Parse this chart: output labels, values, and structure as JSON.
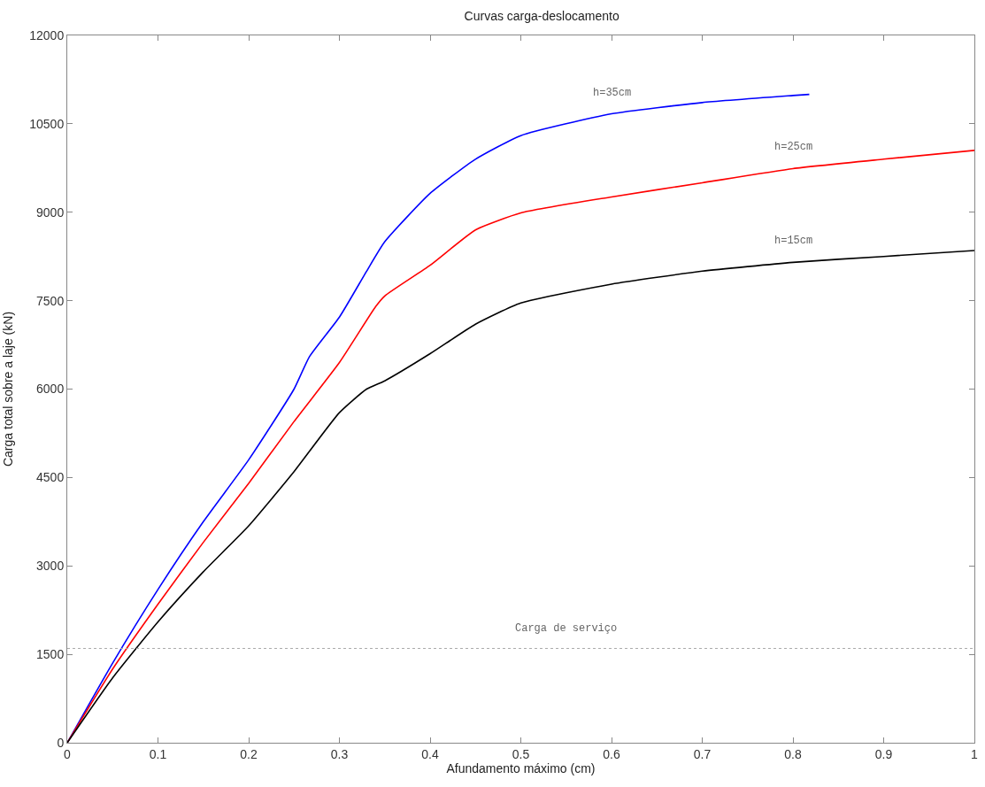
{
  "chart_data": {
    "type": "line",
    "title": "Curvas carga-deslocamento",
    "xlabel": "Afundamento máximo (cm)",
    "ylabel": "Carga total sobre a laje (kN)",
    "xlim": [
      0,
      1
    ],
    "ylim": [
      0,
      12000
    ],
    "xticks": [
      0,
      0.1,
      0.2,
      0.3,
      0.4,
      0.5,
      0.6,
      0.7,
      0.8,
      0.9,
      1
    ],
    "yticks": [
      0,
      1500,
      3000,
      4500,
      6000,
      7500,
      9000,
      10500,
      12000
    ],
    "legend": false,
    "marker": "none",
    "line_style": "solid",
    "series": [
      {
        "name": "h=35cm",
        "color": "#0000ff",
        "x": [
          0,
          0.05,
          0.1,
          0.15,
          0.2,
          0.25,
          0.267,
          0.3,
          0.33,
          0.35,
          0.4,
          0.45,
          0.5,
          0.6,
          0.7,
          0.8,
          0.818
        ],
        "values": [
          0,
          1350,
          2600,
          3750,
          4800,
          6000,
          6550,
          7220,
          8000,
          8500,
          9320,
          9900,
          10300,
          10670,
          10860,
          10980,
          11000
        ]
      },
      {
        "name": "h=25cm",
        "color": "#ff0000",
        "x": [
          0,
          0.05,
          0.1,
          0.15,
          0.2,
          0.25,
          0.3,
          0.34,
          0.35,
          0.4,
          0.45,
          0.5,
          0.6,
          0.7,
          0.8,
          0.9,
          1
        ],
        "values": [
          0,
          1250,
          2350,
          3400,
          4400,
          5450,
          6450,
          7400,
          7580,
          8100,
          8700,
          8990,
          9260,
          9500,
          9740,
          9900,
          10050
        ]
      },
      {
        "name": "h=15cm",
        "color": "#000000",
        "x": [
          0,
          0.05,
          0.1,
          0.15,
          0.2,
          0.25,
          0.3,
          0.33,
          0.35,
          0.4,
          0.45,
          0.5,
          0.6,
          0.7,
          0.8,
          0.9,
          1
        ],
        "values": [
          0,
          1100,
          2050,
          2900,
          3680,
          4600,
          5600,
          6000,
          6140,
          6600,
          7100,
          7460,
          7780,
          8000,
          8150,
          8250,
          8350
        ]
      }
    ],
    "ref_lines": [
      {
        "axis": "y",
        "value": 1600,
        "color": "#aaaaaa",
        "line_style": "dotted",
        "label": "Carga de serviço"
      }
    ]
  }
}
